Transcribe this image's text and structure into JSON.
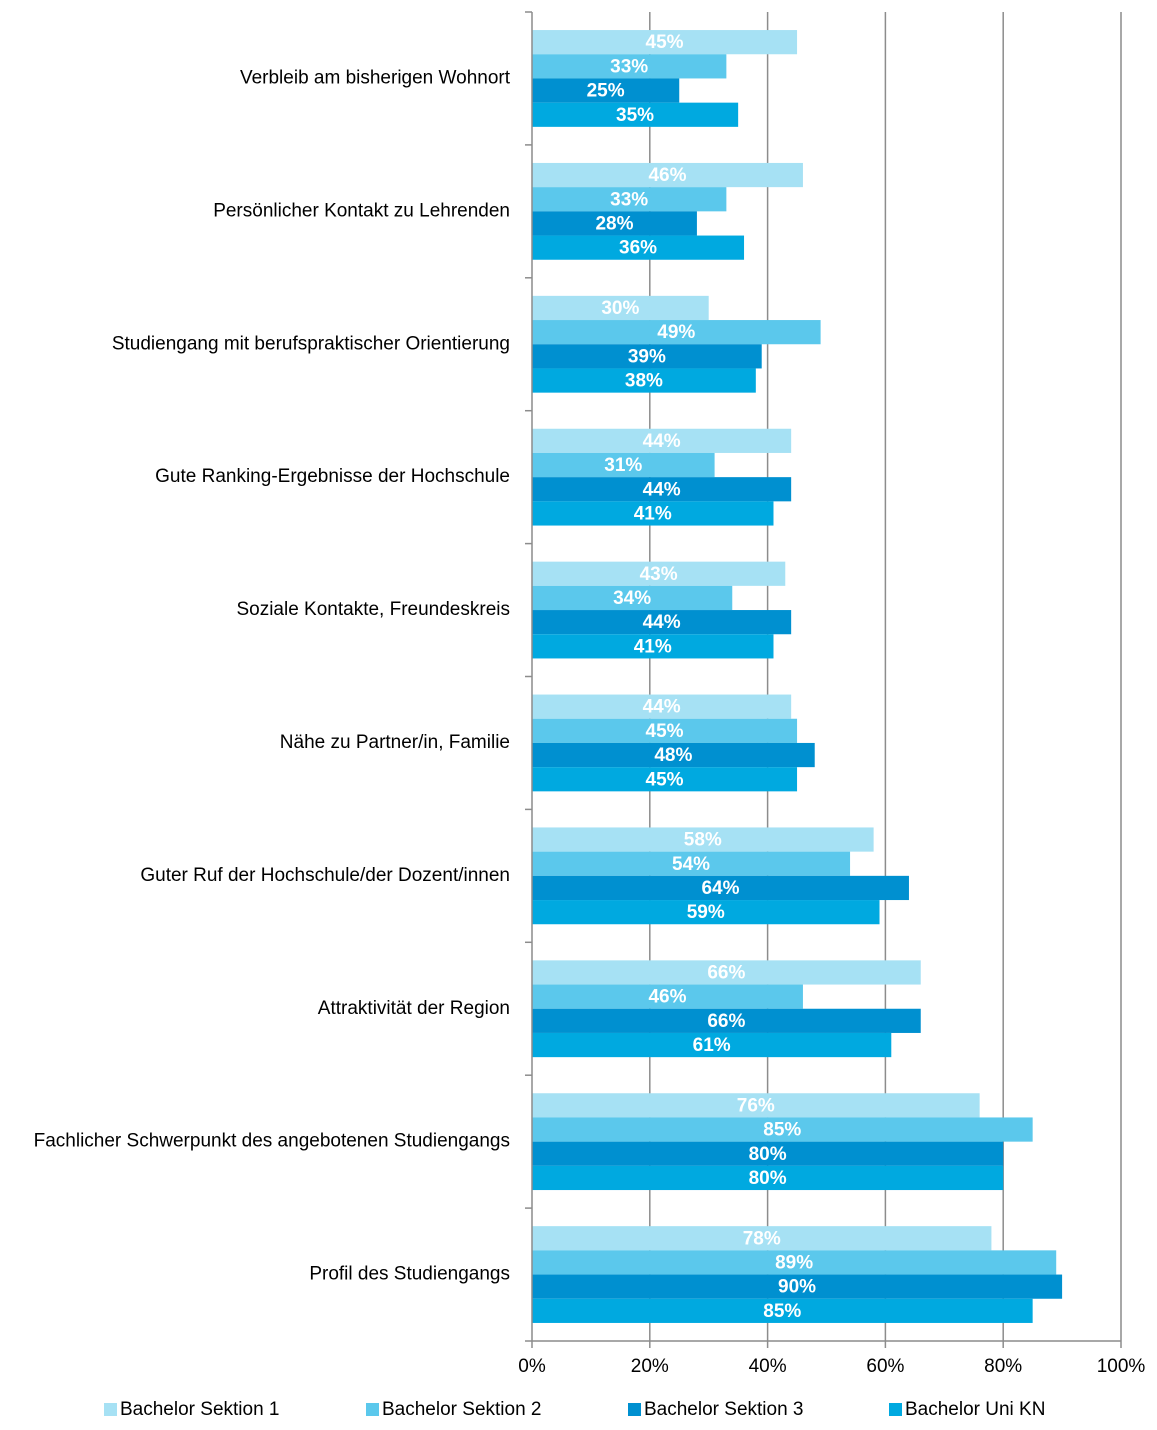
{
  "chart_data": {
    "type": "hbar",
    "categories": [
      "Verbleib am bisherigen Wohnort",
      "Persönlicher Kontakt zu Lehrenden",
      "Studiengang mit berufspraktischer Orientierung",
      "Gute Ranking-Ergebnisse der Hochschule",
      "Soziale Kontakte, Freundeskreis",
      "Nähe zu Partner/in, Familie",
      "Guter Ruf der Hochschule/der Dozent/innen",
      "Attraktivität der Region",
      "Fachlicher Schwerpunkt des angebotenen Studiengangs",
      "Profil des Studiengangs"
    ],
    "series": [
      {
        "name": "Bachelor Sektion 1",
        "color": "#a6e1f4",
        "values": [
          45,
          46,
          30,
          44,
          43,
          44,
          58,
          66,
          76,
          78
        ],
        "value_labels": [
          "45%",
          "46%",
          "30%",
          "44%",
          "43%",
          "44%",
          "58%",
          "66%",
          "76%",
          "78%"
        ]
      },
      {
        "name": "Bachelor Sektion 2",
        "color": "#5bc8ec",
        "values": [
          33,
          33,
          49,
          31,
          34,
          45,
          54,
          46,
          85,
          89
        ],
        "value_labels": [
          "33%",
          "33%",
          "49%",
          "31%",
          "34%",
          "45%",
          "54%",
          "46%",
          "85%",
          "89%"
        ]
      },
      {
        "name": "Bachelor Sektion 3",
        "color": "#0090d0",
        "values": [
          25,
          28,
          39,
          44,
          44,
          48,
          64,
          66,
          80,
          90
        ],
        "value_labels": [
          "25%",
          "28%",
          "39%",
          "44%",
          "44%",
          "48%",
          "64%",
          "66%",
          "80%",
          "90%"
        ]
      },
      {
        "name": "Bachelor Uni KN",
        "color": "#00a9e0",
        "values": [
          35,
          36,
          38,
          41,
          41,
          45,
          59,
          61,
          80,
          85
        ],
        "value_labels": [
          "35%",
          "36%",
          "38%",
          "41%",
          "41%",
          "45%",
          "59%",
          "61%",
          "80%",
          "85%"
        ]
      }
    ],
    "xlim": [
      0,
      100
    ],
    "xticks": [
      {
        "value": 0,
        "label": "0%"
      },
      {
        "value": 20,
        "label": "20%"
      },
      {
        "value": 40,
        "label": "40%"
      },
      {
        "value": 60,
        "label": "60%"
      },
      {
        "value": 80,
        "label": "80%"
      },
      {
        "value": 100,
        "label": "100%"
      }
    ],
    "grid": true,
    "legend": "bottom"
  }
}
